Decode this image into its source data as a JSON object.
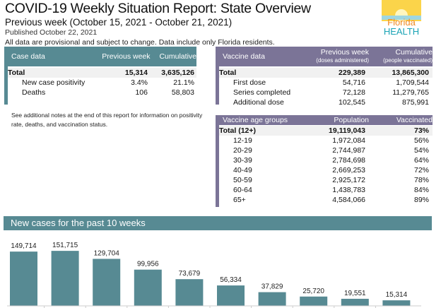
{
  "header": {
    "title": "COVID-19 Weekly Situation Report: State Overview",
    "subtitle": "Previous week (October 15, 2021 - October 21, 2021)",
    "published": "Published October 22, 2021",
    "disclaimer": "All data are provisional and subject to change. Data include only Florida residents.",
    "logo_text": [
      "Florida",
      "HEALTH"
    ]
  },
  "case_data": {
    "headers": [
      "Case data",
      "Previous week",
      "Cumulative"
    ],
    "rows": [
      [
        "Total",
        "15,314",
        "3,635,126"
      ],
      [
        "New case positivity",
        "3.4%",
        "21.1%"
      ],
      [
        "Deaths",
        "106",
        "58,803"
      ]
    ]
  },
  "vaccine_data": {
    "headers": [
      "Vaccine data",
      "Previous week",
      "Cumulative"
    ],
    "subheaders": [
      "(doses administered)",
      "(people vaccinated)"
    ],
    "rows": [
      [
        "Total",
        "229,389",
        "13,865,300"
      ],
      [
        "First dose",
        "54,716",
        "1,709,544"
      ],
      [
        "Series completed",
        "72,128",
        "11,279,765"
      ],
      [
        "Additional dose",
        "102,545",
        "875,991"
      ]
    ]
  },
  "note": "See additional notes at the end of this report for information on positivity rate, deaths, and vaccination status.",
  "age_groups": {
    "headers": [
      "Vaccine age groups",
      "Population",
      "Vaccinated"
    ],
    "rows": [
      [
        "Total (12+)",
        "19,119,043",
        "73%"
      ],
      [
        "12-19",
        "1,972,084",
        "56%"
      ],
      [
        "20-29",
        "2,744,987",
        "54%"
      ],
      [
        "30-39",
        "2,784,698",
        "64%"
      ],
      [
        "40-49",
        "2,669,253",
        "72%"
      ],
      [
        "50-59",
        "2,925,172",
        "78%"
      ],
      [
        "60-64",
        "1,438,783",
        "84%"
      ],
      [
        "65+",
        "4,584,066",
        "89%"
      ]
    ]
  },
  "colors": {
    "teal": "#578a93",
    "purple": "#7b7497"
  },
  "chart_data": {
    "type": "bar",
    "title": "New cases for the past 10 weeks",
    "values": [
      149714,
      151715,
      129704,
      99956,
      73679,
      56334,
      37829,
      25720,
      19551,
      15314
    ],
    "labels": [
      "149,714",
      "151,715",
      "129,704",
      "99,956",
      "73,679",
      "56,334",
      "37,829",
      "25,720",
      "19,551",
      "15,314"
    ],
    "color": "#578a93"
  }
}
